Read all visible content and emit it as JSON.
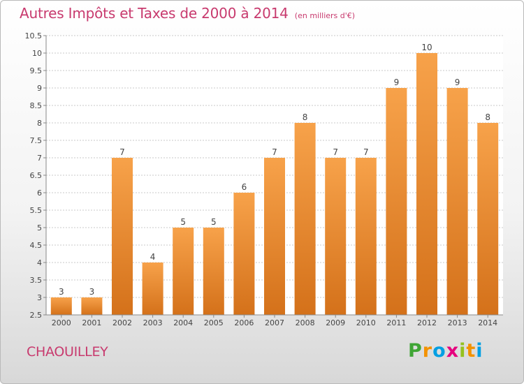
{
  "chart_data": {
    "type": "bar",
    "title": "Autres Impôts et Taxes de 2000 à 2014",
    "subtitle": "(en milliers d'€)",
    "categories": [
      "2000",
      "2001",
      "2002",
      "2003",
      "2004",
      "2005",
      "2006",
      "2007",
      "2008",
      "2009",
      "2010",
      "2011",
      "2012",
      "2013",
      "2014"
    ],
    "values": [
      3,
      3,
      7,
      4,
      5,
      5,
      6,
      7,
      8,
      7,
      7,
      9,
      10,
      9,
      8
    ],
    "ylim": [
      2.5,
      10.5
    ],
    "yticks": [
      "2.5",
      "3",
      "3.5",
      "4",
      "4.5",
      "5",
      "5.5",
      "6",
      "6.5",
      "7",
      "7.5",
      "8",
      "8.5",
      "9",
      "9.5",
      "10",
      "10.5"
    ],
    "grid": true,
    "bar_color": "#f08a2a"
  },
  "footer": {
    "commune": "CHAOUILLEY",
    "logo_letters": [
      "P",
      "r",
      "o",
      "x",
      "i",
      "t",
      "i"
    ],
    "logo_colors": [
      "#3fa535",
      "#f39200",
      "#009fe3",
      "#e6007e",
      "#95c11f",
      "#f39200",
      "#009fe3"
    ]
  }
}
